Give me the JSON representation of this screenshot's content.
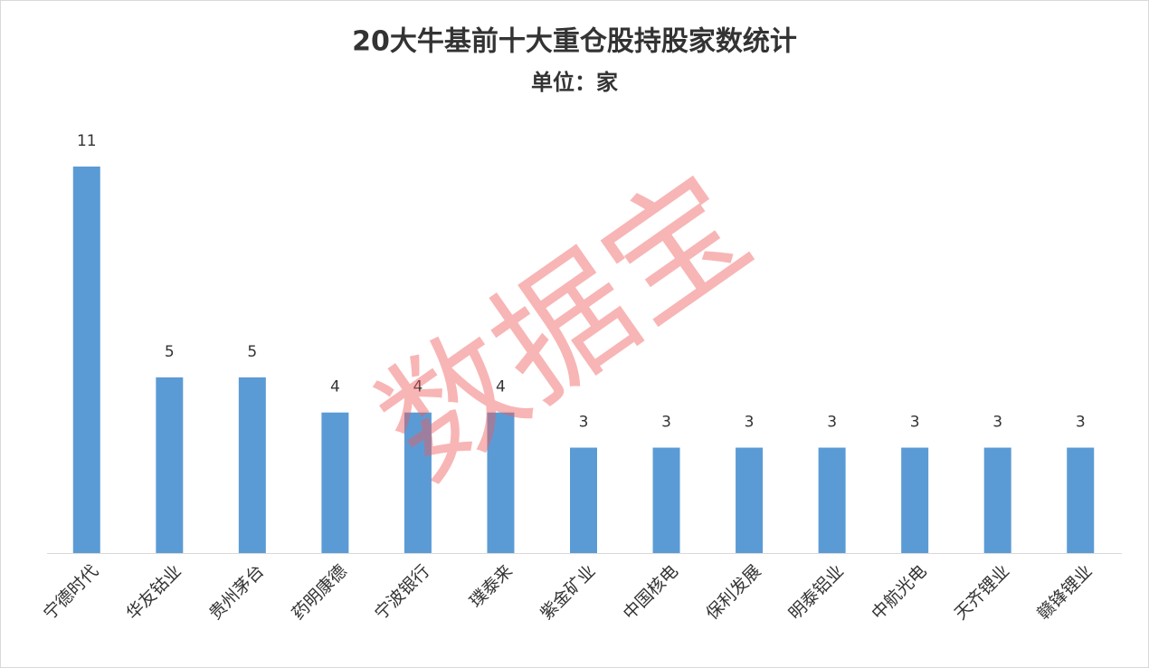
{
  "chart_data": {
    "type": "bar",
    "title": "20大牛基前十大重仓股持股家数统计",
    "subtitle": "单位：家",
    "watermark": "数据宝",
    "categories": [
      "宁德时代",
      "华友钴业",
      "贵州茅台",
      "药明康德",
      "宁波银行",
      "璞泰来",
      "紫金矿业",
      "中国核电",
      "保利发展",
      "明泰铝业",
      "中航光电",
      "天齐锂业",
      "赣锋锂业"
    ],
    "values": [
      11,
      5,
      5,
      4,
      4,
      4,
      3,
      3,
      3,
      3,
      3,
      3,
      3
    ],
    "color": "#5b9bd5"
  }
}
